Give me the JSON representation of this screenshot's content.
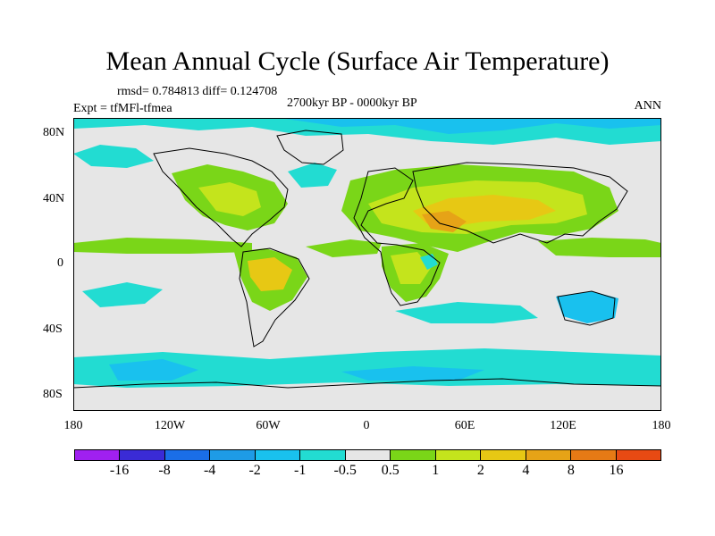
{
  "title": "Mean Annual Cycle (Surface Air Temperature)",
  "stats": "rmsd= 0.784813 diff= 0.124708",
  "experiment": "Expt = tfMFl-tfmea",
  "period": "2700kyr BP - 0000kyr BP",
  "season": "ANN",
  "lat_labels": [
    "80N",
    "40N",
    "0",
    "40S",
    "80S"
  ],
  "lon_labels": [
    "180",
    "120W",
    "60W",
    "0",
    "60E",
    "120E",
    "180"
  ],
  "colorbar": {
    "colors": [
      "#a020f0",
      "#3a2bd6",
      "#1a6ee8",
      "#1e9be6",
      "#19c1ee",
      "#22dcd2",
      "#e6e6e6",
      "#7ad618",
      "#c4e41c",
      "#e7c814",
      "#e6a317",
      "#e67a15",
      "#e84a13"
    ],
    "labels": [
      "-16",
      "-8",
      "-4",
      "-2",
      "-1",
      "-0.5",
      "0.5",
      "1",
      "2",
      "4",
      "8",
      "16"
    ]
  },
  "palette": {
    "background": "#e6e6e6",
    "warm_light": "#7ad618",
    "warm_mid": "#c4e41c",
    "warm_high": "#e7c814",
    "warm_peak": "#e6a317",
    "cool_light": "#22dcd2",
    "cool_mid": "#19c1ee",
    "cool_deep": "#1e9be6"
  }
}
